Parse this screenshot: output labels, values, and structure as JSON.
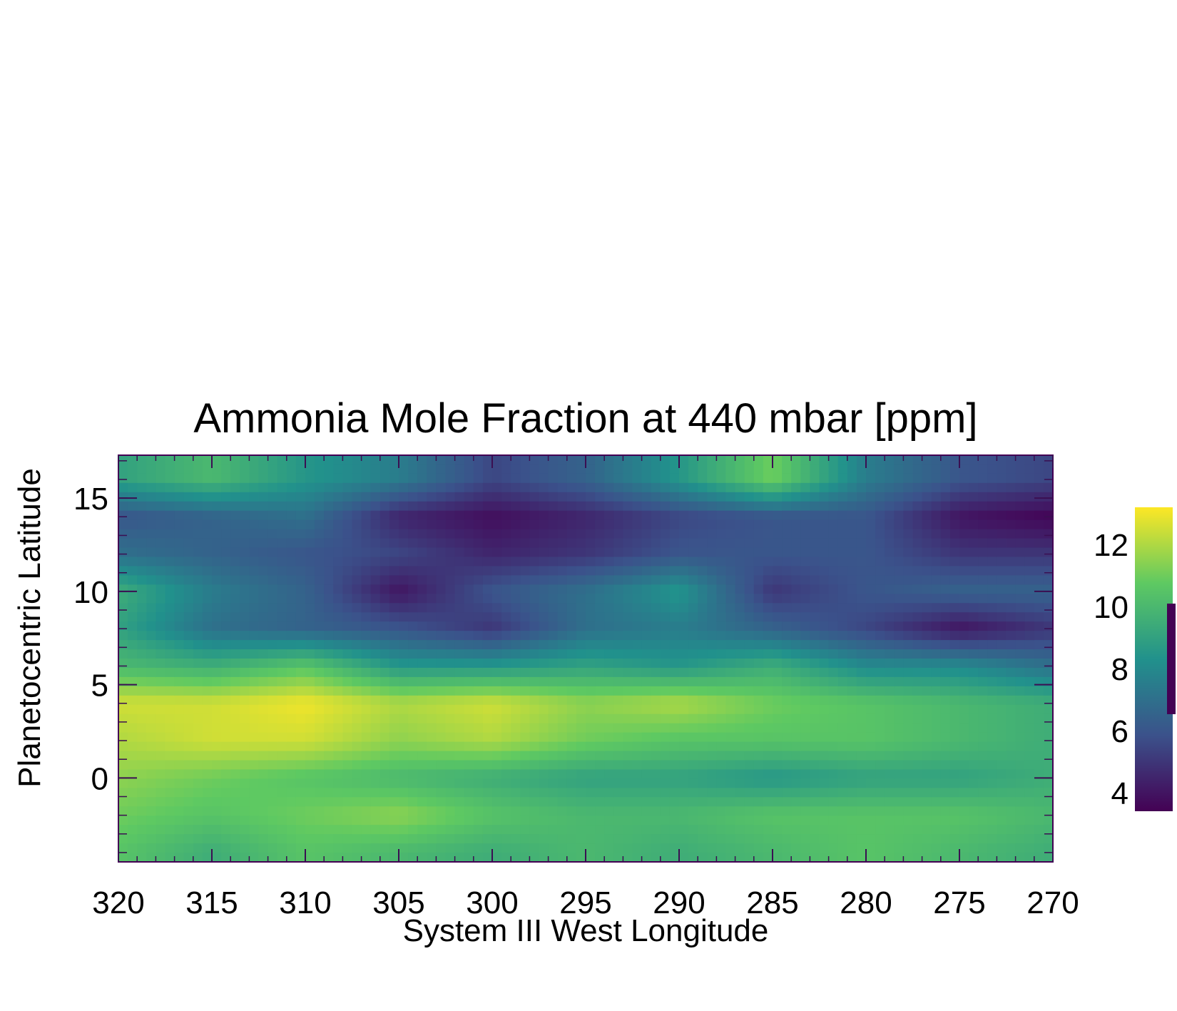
{
  "chart_data": {
    "type": "heatmap",
    "title": "Ammonia Mole Fraction at 440 mbar [ppm]",
    "xlabel": "System III West Longitude",
    "ylabel": "Planetocentric Latitude",
    "xlim": [
      320,
      270
    ],
    "ylim": [
      -4.5,
      17.3
    ],
    "xticks": [
      "320",
      "315",
      "310",
      "305",
      "300",
      "295",
      "290",
      "285",
      "280",
      "275",
      "270"
    ],
    "yticks": [
      "0",
      "5",
      "10",
      "15"
    ],
    "colorbar": {
      "range": [
        3.4,
        13.2
      ],
      "ticks": [
        "4",
        "6",
        "8",
        "10",
        "12"
      ],
      "colormap": [
        "#440154",
        "#3b528b",
        "#21918c",
        "#5ec962",
        "#fde725"
      ]
    },
    "x_longitude": [
      320,
      315,
      310,
      305,
      300,
      295,
      290,
      285,
      280,
      275,
      270
    ],
    "y_latitude": [
      -4,
      -2,
      0,
      2,
      4,
      6,
      8,
      10,
      12,
      14,
      16
    ],
    "z_ppm": [
      [
        10.5,
        9.5,
        10.5,
        10.0,
        9.5,
        10.0,
        9.5,
        10.0,
        10.5,
        10.0,
        9.5
      ],
      [
        11.0,
        10.5,
        11.0,
        11.5,
        10.5,
        10.0,
        10.0,
        10.5,
        10.5,
        10.5,
        10.0
      ],
      [
        11.5,
        11.0,
        10.5,
        10.0,
        9.5,
        9.0,
        9.0,
        8.5,
        9.0,
        9.0,
        9.5
      ],
      [
        12.0,
        12.5,
        12.5,
        11.5,
        12.0,
        11.0,
        10.5,
        10.5,
        10.5,
        10.0,
        9.5
      ],
      [
        12.5,
        12.5,
        13.0,
        12.0,
        12.5,
        11.5,
        12.0,
        11.0,
        10.5,
        10.0,
        9.5
      ],
      [
        10.0,
        9.5,
        10.5,
        8.5,
        8.5,
        9.0,
        8.5,
        9.5,
        8.0,
        8.0,
        7.0
      ],
      [
        9.0,
        7.0,
        6.5,
        6.0,
        5.0,
        7.0,
        7.5,
        6.5,
        5.5,
        4.0,
        5.0
      ],
      [
        9.5,
        7.5,
        6.5,
        4.0,
        6.0,
        7.0,
        8.5,
        5.0,
        6.0,
        6.5,
        6.5
      ],
      [
        7.0,
        6.5,
        6.0,
        5.5,
        4.5,
        5.0,
        6.0,
        6.0,
        6.0,
        5.0,
        5.0
      ],
      [
        6.0,
        6.5,
        7.0,
        4.5,
        3.8,
        4.5,
        5.5,
        6.0,
        6.0,
        4.0,
        3.5
      ],
      [
        9.0,
        10.0,
        8.5,
        7.5,
        5.5,
        6.5,
        8.5,
        11.0,
        7.5,
        6.0,
        5.5
      ]
    ]
  }
}
